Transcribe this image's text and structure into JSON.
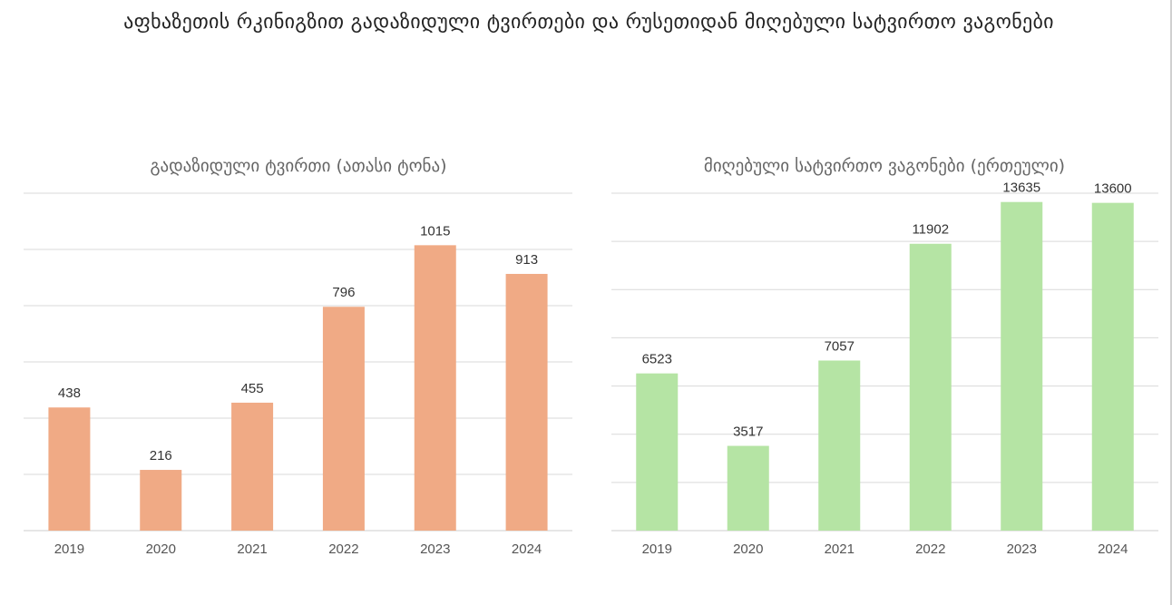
{
  "title": "აფხაზეთის რკინიგზით გადაზიდული ტვირთები და რუსეთიდან მიღებული სატვირთო ვაგონები",
  "chart_data": [
    {
      "type": "bar",
      "title": "გადაზიდული ტვირთი (ათასი ტონა)",
      "categories": [
        "2019",
        "2020",
        "2021",
        "2022",
        "2023",
        "2024"
      ],
      "values": [
        438,
        216,
        455,
        796,
        1015,
        913
      ],
      "ylim": [
        0,
        1200
      ],
      "gridlines": [
        0,
        200,
        400,
        600,
        800,
        1000,
        1200
      ],
      "y_tick_labels": false,
      "data_labels": true,
      "color": "#f0aa85",
      "legend": "none"
    },
    {
      "type": "bar",
      "title": "მიღებული სატვირთო ვაგონები (ერთეული)",
      "categories": [
        "2019",
        "2020",
        "2021",
        "2022",
        "2023",
        "2024"
      ],
      "values": [
        6523,
        3517,
        7057,
        11902,
        13635,
        13600
      ],
      "ylim": [
        0,
        14000
      ],
      "gridlines": [
        0,
        2000,
        4000,
        6000,
        8000,
        10000,
        12000,
        14000
      ],
      "y_tick_labels": false,
      "data_labels": true,
      "color": "#b5e4a4",
      "legend": "none"
    }
  ]
}
